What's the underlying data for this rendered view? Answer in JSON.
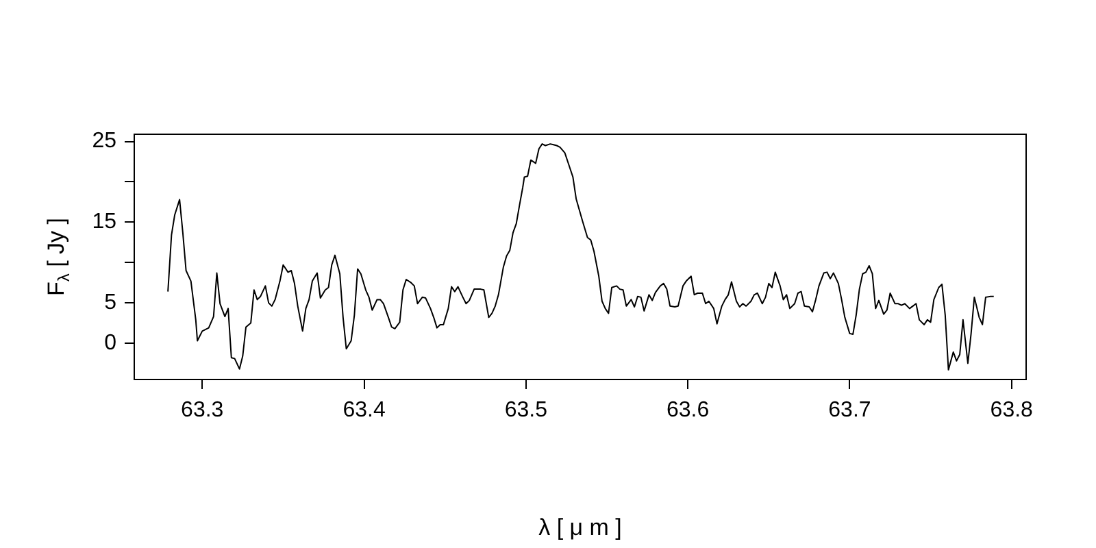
{
  "chart_data": {
    "type": "line",
    "xlabel": "λ [ μ m ]",
    "ylabel": "F$_{λ}$ [ Jy ]",
    "xlim": [
      63.258,
      63.809
    ],
    "xticks": [
      63.3,
      63.4,
      63.5,
      63.6,
      63.7,
      63.8
    ],
    "ylim": [
      -4.5,
      25.9
    ],
    "yticks": [
      0,
      5,
      {
        "value": 10,
        "label": null
      },
      15,
      {
        "value": 20,
        "label": null
      },
      25
    ],
    "grid": false,
    "legend": false,
    "marker": "none",
    "line_style": "solid",
    "series": [
      {
        "color": "#000000",
        "x": [
          63.2788,
          63.281,
          63.283,
          63.286,
          63.288,
          63.29,
          63.293,
          63.296,
          63.297,
          63.3,
          63.304,
          63.307,
          63.309,
          63.311,
          63.314,
          63.316,
          63.318,
          63.32,
          63.323,
          63.325,
          63.327,
          63.33,
          63.332,
          63.334,
          63.336,
          63.339,
          63.341,
          63.343,
          63.345,
          63.348,
          63.35,
          63.353,
          63.355,
          63.357,
          63.359,
          63.362,
          63.364,
          63.366,
          63.368,
          63.371,
          63.373,
          63.376,
          63.378,
          63.38,
          63.382,
          63.385,
          63.387,
          63.389,
          63.392,
          63.394,
          63.396,
          63.398,
          63.401,
          63.403,
          63.405,
          63.408,
          63.41,
          63.412,
          63.415,
          63.417,
          63.419,
          63.422,
          63.424,
          63.426,
          63.429,
          63.431,
          63.433,
          63.436,
          63.438,
          63.441,
          63.443,
          63.445,
          63.447,
          63.449,
          63.452,
          63.454,
          63.456,
          63.458,
          63.461,
          63.463,
          63.465,
          63.468,
          63.47,
          63.472,
          63.474,
          63.477,
          63.479,
          63.481,
          63.483,
          63.486,
          63.488,
          63.49,
          63.492,
          63.494,
          63.496,
          63.498,
          63.499,
          63.501,
          63.503,
          63.506,
          63.508,
          63.51,
          63.512,
          63.515,
          63.517,
          63.519,
          63.521,
          63.524,
          63.526,
          63.529,
          63.531,
          63.533,
          63.535,
          63.538,
          63.54,
          63.542,
          63.545,
          63.547,
          63.549,
          63.551,
          63.553,
          63.556,
          63.558,
          63.56,
          63.562,
          63.565,
          63.567,
          63.569,
          63.571,
          63.573,
          63.576,
          63.578,
          63.58,
          63.583,
          63.585,
          63.587,
          63.589,
          63.592,
          63.594,
          63.597,
          63.599,
          63.602,
          63.604,
          63.606,
          63.609,
          63.611,
          63.613,
          63.616,
          63.618,
          63.621,
          63.623,
          63.625,
          63.627,
          63.63,
          63.632,
          63.634,
          63.636,
          63.639,
          63.641,
          63.643,
          63.646,
          63.648,
          63.65,
          63.652,
          63.654,
          63.657,
          63.659,
          63.661,
          63.663,
          63.666,
          63.668,
          63.67,
          63.672,
          63.675,
          63.677,
          63.679,
          63.681,
          63.684,
          63.686,
          63.688,
          63.69,
          63.693,
          63.695,
          63.697,
          63.7,
          63.702,
          63.704,
          63.706,
          63.708,
          63.71,
          63.712,
          63.714,
          63.716,
          63.718,
          63.721,
          63.723,
          63.725,
          63.728,
          63.73,
          63.732,
          63.734,
          63.737,
          63.739,
          63.741,
          63.743,
          63.746,
          63.748,
          63.75,
          63.752,
          63.755,
          63.757,
          63.759,
          63.761,
          63.764,
          63.766,
          63.768,
          63.77,
          63.773,
          63.775,
          63.777,
          63.78,
          63.782,
          63.784,
          63.787,
          63.789
        ],
        "values": [
          6.4,
          13.4,
          15.9,
          17.8,
          13.7,
          9.0,
          7.7,
          2.9,
          0.3,
          1.5,
          1.9,
          3.3,
          8.7,
          4.9,
          3.3,
          4.3,
          -1.8,
          -1.9,
          -3.2,
          -1.6,
          2.0,
          2.5,
          6.6,
          5.4,
          5.8,
          7.1,
          5.0,
          4.6,
          5.4,
          7.7,
          9.7,
          8.8,
          9.0,
          7.4,
          4.6,
          1.5,
          4.3,
          5.4,
          7.7,
          8.7,
          5.6,
          6.6,
          6.9,
          9.7,
          10.9,
          8.6,
          3.2,
          -0.7,
          0.3,
          3.5,
          9.2,
          8.6,
          6.6,
          5.7,
          4.1,
          5.4,
          5.4,
          4.9,
          3.2,
          2.0,
          1.8,
          2.6,
          6.6,
          7.9,
          7.5,
          7.1,
          4.9,
          5.7,
          5.6,
          4.3,
          3.2,
          1.9,
          2.3,
          2.3,
          4.3,
          7.0,
          6.4,
          7.0,
          5.7,
          4.9,
          5.3,
          6.7,
          6.7,
          6.7,
          6.6,
          3.2,
          3.7,
          4.6,
          6.0,
          9.4,
          10.8,
          11.5,
          13.7,
          14.8,
          17.1,
          19.3,
          20.6,
          20.7,
          22.7,
          22.3,
          24.1,
          24.7,
          24.5,
          24.7,
          24.6,
          24.5,
          24.3,
          23.6,
          22.4,
          20.6,
          17.9,
          16.5,
          15.1,
          13.1,
          12.8,
          11.4,
          8.3,
          5.2,
          4.3,
          3.7,
          6.9,
          7.1,
          6.7,
          6.6,
          4.6,
          5.4,
          4.5,
          5.8,
          5.7,
          4.0,
          6.0,
          5.3,
          6.3,
          7.1,
          7.4,
          6.7,
          4.6,
          4.5,
          4.6,
          7.1,
          7.7,
          8.3,
          6.0,
          6.2,
          6.2,
          4.9,
          5.2,
          4.3,
          2.4,
          4.6,
          5.4,
          6.0,
          7.6,
          5.2,
          4.5,
          4.9,
          4.6,
          5.2,
          6.0,
          6.2,
          4.9,
          5.7,
          7.4,
          6.9,
          8.8,
          7.1,
          5.4,
          6.0,
          4.3,
          4.9,
          6.2,
          6.4,
          4.6,
          4.5,
          3.9,
          5.4,
          7.1,
          8.7,
          8.8,
          8.0,
          8.7,
          7.4,
          5.4,
          3.2,
          1.2,
          1.1,
          3.5,
          6.7,
          8.6,
          8.8,
          9.6,
          8.6,
          4.3,
          5.3,
          3.6,
          4.1,
          6.2,
          4.9,
          4.9,
          4.7,
          4.9,
          4.3,
          4.6,
          4.9,
          2.9,
          2.3,
          2.9,
          2.6,
          5.4,
          6.9,
          7.3,
          3.5,
          -3.3,
          -1.1,
          -2.2,
          -1.4,
          2.9,
          -2.5,
          1.2,
          5.7,
          3.2,
          2.3,
          5.7,
          5.8,
          5.8
        ]
      }
    ]
  }
}
